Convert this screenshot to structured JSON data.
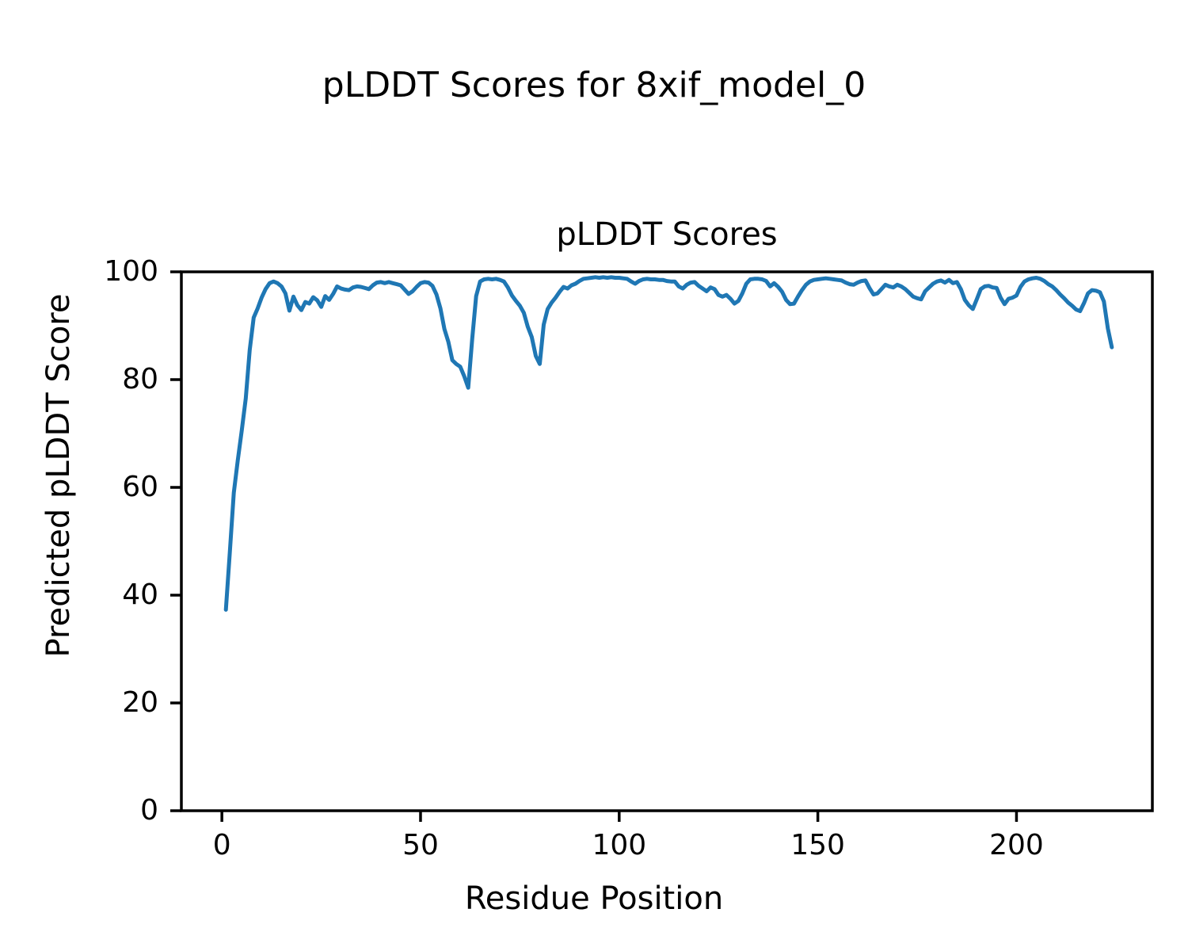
{
  "figure": {
    "suptitle": "pLDDT Scores for 8xif_model_0"
  },
  "chart_data": {
    "type": "line",
    "title": "pLDDT Scores",
    "xlabel": "Residue Position",
    "ylabel": "Predicted pLDDT Score",
    "x_ticks": [
      0,
      50,
      100,
      150,
      200
    ],
    "y_ticks": [
      0,
      20,
      40,
      60,
      80,
      100
    ],
    "xlim": [
      -10.2,
      234.2
    ],
    "ylim": [
      0,
      100
    ],
    "grid": false,
    "legend": null,
    "line_color": "#1f77b4",
    "axis_color": "#000000",
    "series": [
      {
        "name": "pLDDT",
        "x_start": 1,
        "x_step": 1,
        "values": [
          37.3,
          48.0,
          59.0,
          65.0,
          70.5,
          76.5,
          85.5,
          91.5,
          93.2,
          95.2,
          96.8,
          97.9,
          98.2,
          97.9,
          97.3,
          96.0,
          92.8,
          95.4,
          93.8,
          92.9,
          94.4,
          94.1,
          95.3,
          94.7,
          93.5,
          95.5,
          94.8,
          95.9,
          97.3,
          96.9,
          96.7,
          96.6,
          97.1,
          97.3,
          97.2,
          97.0,
          96.8,
          97.5,
          98.0,
          98.1,
          97.9,
          98.1,
          97.9,
          97.7,
          97.5,
          96.7,
          95.9,
          96.4,
          97.2,
          97.9,
          98.1,
          98.0,
          97.4,
          95.8,
          93.2,
          89.4,
          87.0,
          83.6,
          82.9,
          82.4,
          80.6,
          78.5,
          87.5,
          95.5,
          98.2,
          98.6,
          98.7,
          98.6,
          98.7,
          98.5,
          98.2,
          97.1,
          95.6,
          94.6,
          93.7,
          92.4,
          89.8,
          87.9,
          84.4,
          82.9,
          90.2,
          93.1,
          94.3,
          95.2,
          96.3,
          97.2,
          96.9,
          97.5,
          97.8,
          98.3,
          98.7,
          98.8,
          98.9,
          99.0,
          98.9,
          99.0,
          98.9,
          99.0,
          98.9,
          98.9,
          98.8,
          98.7,
          98.2,
          97.8,
          98.3,
          98.6,
          98.7,
          98.6,
          98.6,
          98.5,
          98.5,
          98.3,
          98.2,
          98.2,
          97.3,
          96.9,
          97.6,
          98.0,
          98.1,
          97.4,
          96.9,
          96.4,
          97.1,
          96.8,
          95.7,
          95.4,
          95.7,
          95.0,
          94.1,
          94.6,
          96.0,
          97.8,
          98.6,
          98.7,
          98.7,
          98.6,
          98.3,
          97.3,
          97.9,
          97.2,
          96.3,
          94.8,
          94.0,
          94.1,
          95.4,
          96.6,
          97.6,
          98.2,
          98.5,
          98.6,
          98.7,
          98.8,
          98.7,
          98.6,
          98.5,
          98.4,
          98.0,
          97.7,
          97.6,
          98.0,
          98.3,
          98.4,
          97.0,
          95.8,
          96.0,
          96.8,
          97.6,
          97.3,
          97.1,
          97.6,
          97.3,
          96.8,
          96.1,
          95.4,
          95.1,
          94.9,
          96.4,
          97.1,
          97.8,
          98.2,
          98.4,
          98.0,
          98.5,
          97.9,
          98.1,
          96.8,
          94.8,
          93.8,
          93.1,
          94.9,
          96.8,
          97.3,
          97.4,
          97.1,
          97.0,
          95.2,
          94.0,
          95.0,
          95.2,
          95.6,
          97.2,
          98.2,
          98.6,
          98.8,
          98.9,
          98.7,
          98.3,
          97.7,
          97.3,
          96.6,
          95.8,
          95.1,
          94.3,
          93.7,
          93.0,
          92.7,
          94.2,
          96.0,
          96.6,
          96.5,
          96.2,
          94.5,
          89.5,
          86.0
        ]
      }
    ]
  }
}
